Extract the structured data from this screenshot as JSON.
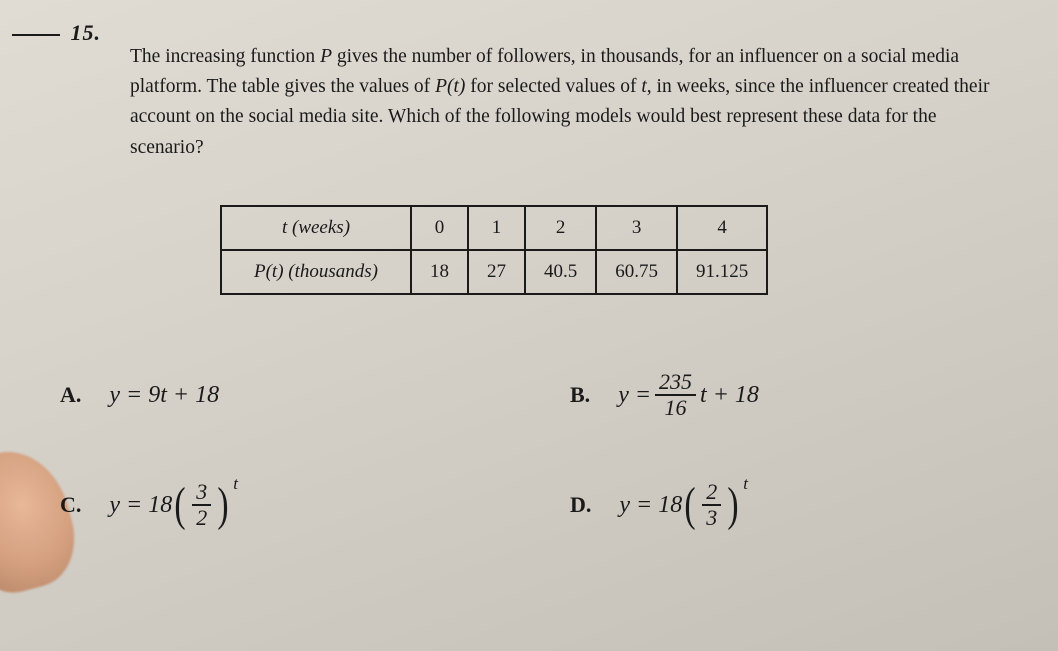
{
  "question": {
    "number": "15.",
    "text_parts": {
      "p1": "The increasing function ",
      "p2": " gives the number of followers, in thousands, for an influencer on a social media platform. The table gives the values of ",
      "p3": " for selected values of ",
      "p4": ", in weeks, since the influencer created their account on the social media site. Which of the following models would best represent these data for the scenario?"
    },
    "func_P": "P",
    "P_of_t": "P(t)",
    "var_t": "t"
  },
  "table": {
    "row1_label": "t (weeks)",
    "row2_label": "P(t) (thousands)",
    "t_values": [
      "0",
      "1",
      "2",
      "3",
      "4"
    ],
    "p_values": [
      "18",
      "27",
      "40.5",
      "60.75",
      "91.125"
    ],
    "border_color": "#1a1a1a",
    "cell_fontsize": 19
  },
  "choices": {
    "A": {
      "label": "A.",
      "expr_plain": "y = 9t + 18"
    },
    "B": {
      "label": "B.",
      "prefix": "y = ",
      "frac_num": "235",
      "frac_den": "16",
      "suffix": "t + 18"
    },
    "C": {
      "label": "C.",
      "prefix": "y = 18",
      "frac_num": "3",
      "frac_den": "2",
      "exponent": "t"
    },
    "D": {
      "label": "D.",
      "prefix": "y = 18",
      "frac_num": "2",
      "frac_den": "3",
      "exponent": "t"
    }
  },
  "style": {
    "bg_gradient_start": "#e0dcd4",
    "bg_gradient_end": "#c4c0b8",
    "text_color": "#1a1a1a",
    "body_fontsize_pt": 15,
    "math_fontsize_pt": 18
  }
}
